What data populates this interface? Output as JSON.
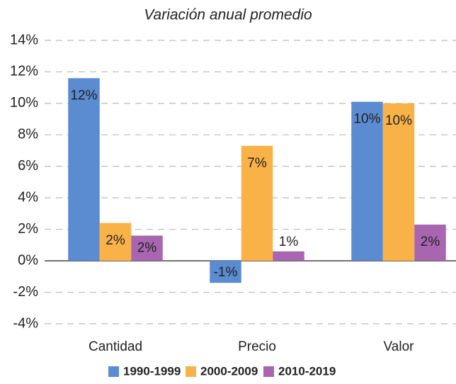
{
  "chart_data": {
    "type": "bar",
    "subtitle": "Variación anual promedio",
    "categories": [
      "Cantidad",
      "Precio",
      "Valor"
    ],
    "series": [
      {
        "name": "1990-1999",
        "color": "#5b8bd0",
        "values": [
          11.6,
          -1.4,
          10.1
        ],
        "value_labels": [
          "12%",
          "-1%",
          "10%"
        ]
      },
      {
        "name": "2000-2009",
        "color": "#f9b248",
        "values": [
          2.4,
          7.3,
          10.0
        ],
        "value_labels": [
          "2%",
          "7%",
          "10%"
        ]
      },
      {
        "name": "2010-2019",
        "color": "#a865b0",
        "values": [
          1.6,
          0.6,
          2.3
        ],
        "value_labels": [
          "2%",
          "1%",
          "2%"
        ]
      }
    ],
    "ylim": [
      -4,
      14
    ],
    "yticks": [
      {
        "value": -4,
        "label": "-4%"
      },
      {
        "value": -2,
        "label": "-2%"
      },
      {
        "value": 0,
        "label": "0%"
      },
      {
        "value": 2,
        "label": "2%"
      },
      {
        "value": 4,
        "label": "4%"
      },
      {
        "value": 6,
        "label": "6%"
      },
      {
        "value": 8,
        "label": "8%"
      },
      {
        "value": 10,
        "label": "10%"
      },
      {
        "value": 12,
        "label": "12%"
      },
      {
        "value": 14,
        "label": "14%"
      }
    ],
    "grid": true,
    "legend": "bottom"
  }
}
